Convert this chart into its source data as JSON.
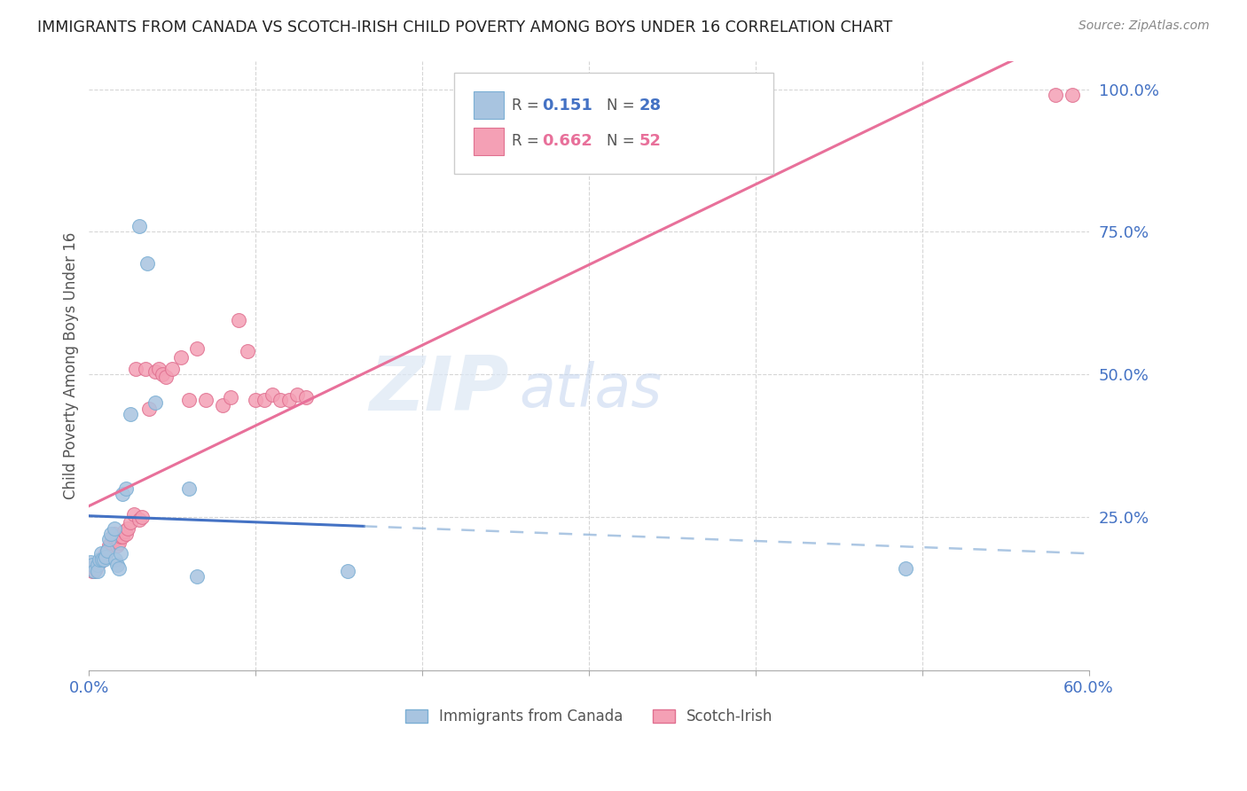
{
  "title": "IMMIGRANTS FROM CANADA VS SCOTCH-IRISH CHILD POVERTY AMONG BOYS UNDER 16 CORRELATION CHART",
  "source": "Source: ZipAtlas.com",
  "ylabel": "Child Poverty Among Boys Under 16",
  "xlim": [
    0.0,
    0.6
  ],
  "ylim": [
    -0.02,
    1.05
  ],
  "canada_color": "#a8c4e0",
  "scotch_color": "#f4a0b5",
  "canada_line_color": "#4472c4",
  "scotch_line_color": "#e8709a",
  "canada_dot_edge": "#7bafd4",
  "scotch_dot_edge": "#e07090",
  "watermark_color": "#d0ddf0",
  "grid_color": "#cccccc",
  "canada_x": [
    0.001,
    0.002,
    0.003,
    0.004,
    0.005,
    0.006,
    0.007,
    0.008,
    0.009,
    0.01,
    0.011,
    0.012,
    0.013,
    0.014,
    0.015,
    0.016,
    0.017,
    0.018,
    0.02,
    0.022,
    0.025,
    0.03,
    0.035,
    0.04,
    0.06,
    0.065,
    0.155,
    0.49
  ],
  "canada_y": [
    0.17,
    0.165,
    0.155,
    0.155,
    0.165,
    0.175,
    0.18,
    0.175,
    0.175,
    0.18,
    0.2,
    0.21,
    0.22,
    0.225,
    0.23,
    0.175,
    0.165,
    0.16,
    0.29,
    0.3,
    0.43,
    0.76,
    0.695,
    0.45,
    0.3,
    0.145,
    0.155,
    0.16
  ],
  "scotch_x": [
    0.001,
    0.002,
    0.003,
    0.004,
    0.005,
    0.006,
    0.007,
    0.008,
    0.009,
    0.01,
    0.011,
    0.012,
    0.013,
    0.014,
    0.015,
    0.016,
    0.017,
    0.018,
    0.019,
    0.02,
    0.021,
    0.022,
    0.023,
    0.025,
    0.027,
    0.028,
    0.03,
    0.032,
    0.035,
    0.038,
    0.04,
    0.042,
    0.044,
    0.046,
    0.05,
    0.055,
    0.06,
    0.065,
    0.07,
    0.08,
    0.085,
    0.09,
    0.095,
    0.1,
    0.105,
    0.11,
    0.115,
    0.12,
    0.125,
    0.13,
    0.58,
    0.59
  ],
  "scotch_y": [
    0.16,
    0.155,
    0.165,
    0.17,
    0.17,
    0.175,
    0.175,
    0.18,
    0.18,
    0.185,
    0.19,
    0.2,
    0.205,
    0.215,
    0.22,
    0.21,
    0.2,
    0.205,
    0.215,
    0.215,
    0.225,
    0.22,
    0.23,
    0.23,
    0.255,
    0.51,
    0.245,
    0.25,
    0.51,
    0.44,
    0.505,
    0.51,
    0.5,
    0.495,
    0.51,
    0.53,
    0.45,
    0.54,
    0.455,
    0.445,
    0.45,
    0.59,
    0.54,
    0.45,
    0.455,
    0.46,
    0.45,
    0.455,
    0.46,
    0.455,
    0.99,
    0.99
  ]
}
